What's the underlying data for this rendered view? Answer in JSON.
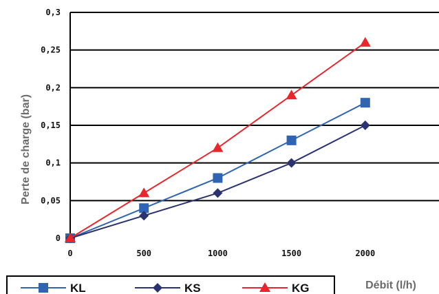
{
  "chart_data": {
    "type": "line",
    "xlabel": "Débit (l/h)",
    "ylabel": "Perte de charge (bar)",
    "xlim": [
      0,
      2500
    ],
    "ylim": [
      0,
      0.3
    ],
    "grid": "horizontal",
    "legend_position": "bottom",
    "x": [
      0,
      500,
      1000,
      1500,
      2000
    ],
    "x_tick_labels": [
      "0",
      "500",
      "1000",
      "1500",
      "2000"
    ],
    "y_ticks": [
      0,
      0.05,
      0.1,
      0.15,
      0.2,
      0.25,
      0.3
    ],
    "y_tick_labels": [
      "0",
      "0,05",
      "0,1",
      "0,15",
      "0,2",
      "0,25",
      "0,3"
    ],
    "series": [
      {
        "name": "KL",
        "color": "#2f64b2",
        "marker": "square",
        "values": [
          0,
          0.04,
          0.08,
          0.13,
          0.18
        ]
      },
      {
        "name": "KS",
        "color": "#2a3270",
        "marker": "diamond",
        "values": [
          0,
          0.03,
          0.06,
          0.1,
          0.15
        ]
      },
      {
        "name": "KG",
        "color": "#e8262b",
        "marker": "triangle",
        "values": [
          0,
          0.06,
          0.12,
          0.19,
          0.26
        ]
      }
    ]
  }
}
